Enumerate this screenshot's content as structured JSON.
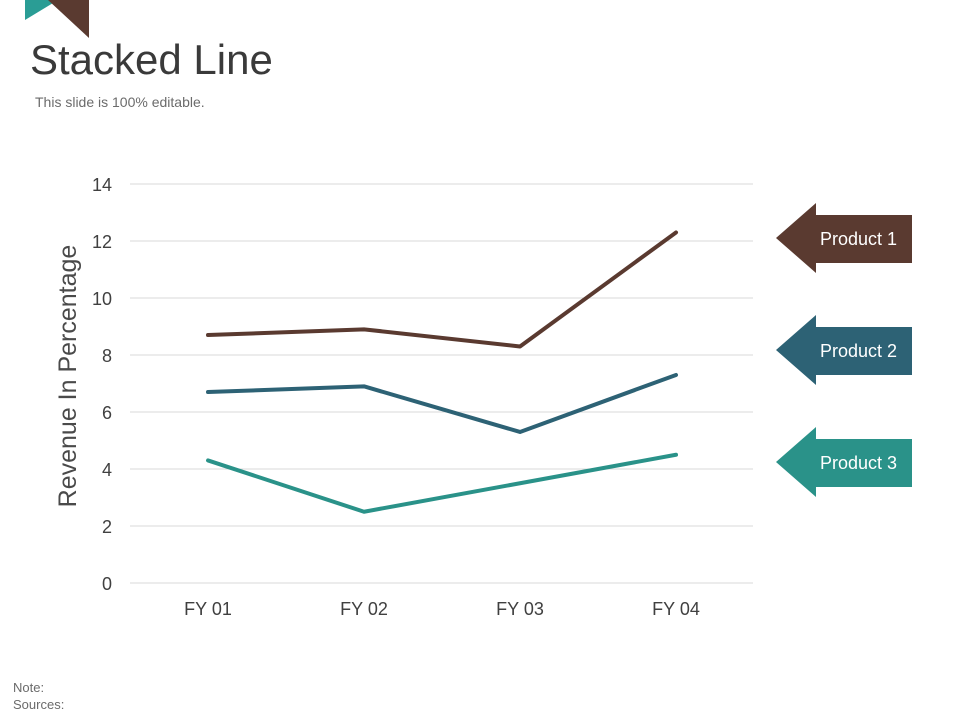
{
  "slide": {
    "title": "Stacked Line",
    "subtitle": "This slide is 100% editable.",
    "note_label": "Note:",
    "sources_label": "Sources:"
  },
  "colors": {
    "corner_teal": "#2a9d95",
    "corner_brown": "#5a3a30",
    "grid": "#d9d9d9",
    "tick_text": "#404040",
    "axis_label": "#4a4a4a"
  },
  "chart_data": {
    "type": "line",
    "title": "",
    "xlabel": "",
    "ylabel": "Revenue In Percentage",
    "categories": [
      "FY 01",
      "FY 02",
      "FY 03",
      "FY 04"
    ],
    "ylim": [
      0,
      14
    ],
    "yticks": [
      0,
      2,
      4,
      6,
      8,
      10,
      12,
      14
    ],
    "grid": true,
    "legend_position": "right",
    "series": [
      {
        "name": "Product 1",
        "color": "#5a3a30",
        "values": [
          8.7,
          8.9,
          8.3,
          12.3
        ]
      },
      {
        "name": "Product 2",
        "color": "#2d6275",
        "values": [
          6.7,
          6.9,
          5.3,
          7.3
        ]
      },
      {
        "name": "Product 3",
        "color": "#2a9289",
        "values": [
          4.3,
          2.5,
          3.5,
          4.5
        ]
      }
    ]
  }
}
